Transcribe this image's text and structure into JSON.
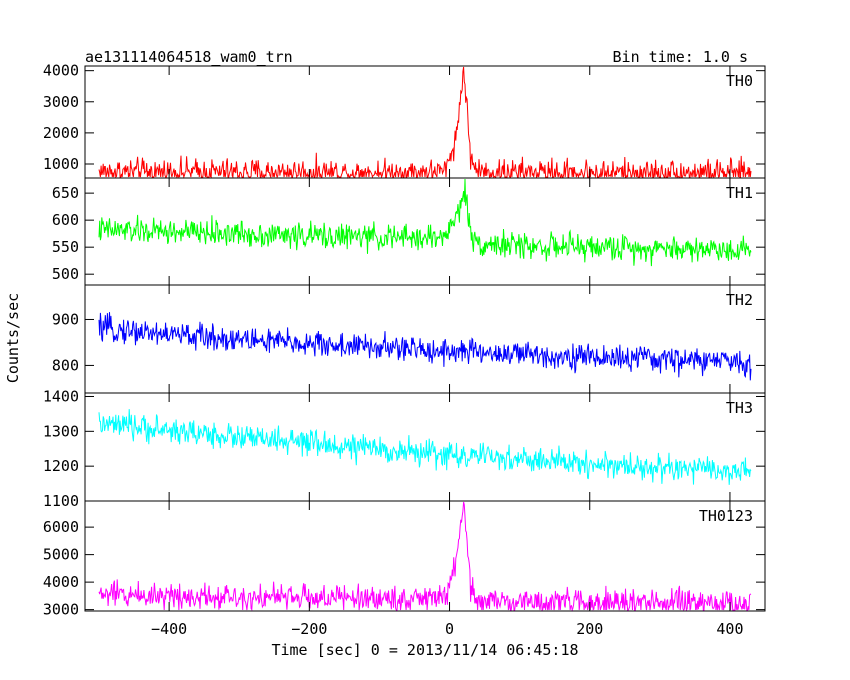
{
  "header": {
    "title": "ae131114064518_wam0_trn",
    "bin_time": "Bin time: 1.0 s"
  },
  "colors": {
    "TH0": "#ff0000",
    "TH1": "#00ff00",
    "TH2": "#0000ff",
    "TH3": "#00ffff",
    "TH0123": "#ff00ff"
  },
  "chart_data": {
    "type": "line",
    "title": "ae131114064518_wam0_trn",
    "subtitle": "Bin time: 1.0 s",
    "xlabel": "Time [sec] 0 = 2013/11/14 06:45:18",
    "ylabel": "Counts/sec",
    "xlim": [
      -520,
      450
    ],
    "x_ticks": [
      -400,
      -200,
      0,
      200,
      400
    ],
    "panels": [
      {
        "name": "TH0",
        "ylim": [
          550,
          4150
        ],
        "y_ticks": [
          1000,
          2000,
          3000,
          4000
        ],
        "points": [
          [
            -500,
            750
          ],
          [
            -450,
            745
          ],
          [
            -400,
            740
          ],
          [
            -350,
            740
          ],
          [
            -300,
            735
          ],
          [
            -250,
            735
          ],
          [
            -200,
            730
          ],
          [
            -150,
            730
          ],
          [
            -100,
            725
          ],
          [
            -50,
            725
          ],
          [
            -10,
            740
          ],
          [
            -5,
            820
          ],
          [
            0,
            1150
          ],
          [
            5,
            1600
          ],
          [
            10,
            1900
          ],
          [
            14,
            2800
          ],
          [
            18,
            3700
          ],
          [
            20,
            4000
          ],
          [
            23,
            3400
          ],
          [
            26,
            2300
          ],
          [
            30,
            1300
          ],
          [
            35,
            880
          ],
          [
            40,
            780
          ],
          [
            50,
            740
          ],
          [
            100,
            725
          ],
          [
            150,
            720
          ],
          [
            200,
            715
          ],
          [
            250,
            715
          ],
          [
            300,
            710
          ],
          [
            350,
            710
          ],
          [
            400,
            705
          ],
          [
            430,
            700
          ]
        ]
      },
      {
        "name": "TH1",
        "ylim": [
          480,
          678
        ],
        "y_ticks": [
          500,
          550,
          600,
          650
        ],
        "points": [
          [
            -500,
            582
          ],
          [
            -450,
            580
          ],
          [
            -400,
            578
          ],
          [
            -350,
            577
          ],
          [
            -300,
            575
          ],
          [
            -250,
            573
          ],
          [
            -200,
            571
          ],
          [
            -150,
            570
          ],
          [
            -100,
            568
          ],
          [
            -50,
            567
          ],
          [
            -10,
            568
          ],
          [
            0,
            585
          ],
          [
            10,
            605
          ],
          [
            18,
            640
          ],
          [
            22,
            660
          ],
          [
            26,
            610
          ],
          [
            30,
            575
          ],
          [
            40,
            558
          ],
          [
            50,
            556
          ],
          [
            100,
            553
          ],
          [
            150,
            551
          ],
          [
            200,
            550
          ],
          [
            250,
            549
          ],
          [
            300,
            548
          ],
          [
            350,
            547
          ],
          [
            400,
            546
          ],
          [
            430,
            545
          ]
        ]
      },
      {
        "name": "TH2",
        "ylim": [
          740,
          975
        ],
        "y_ticks": [
          800,
          900
        ],
        "points": [
          [
            -500,
            880
          ],
          [
            -450,
            875
          ],
          [
            -400,
            868
          ],
          [
            -350,
            862
          ],
          [
            -300,
            857
          ],
          [
            -250,
            852
          ],
          [
            -200,
            847
          ],
          [
            -150,
            843
          ],
          [
            -100,
            839
          ],
          [
            -50,
            835
          ],
          [
            0,
            832
          ],
          [
            50,
            828
          ],
          [
            100,
            824
          ],
          [
            150,
            821
          ],
          [
            200,
            818
          ],
          [
            250,
            816
          ],
          [
            300,
            813
          ],
          [
            350,
            811
          ],
          [
            400,
            809
          ],
          [
            430,
            808
          ]
        ]
      },
      {
        "name": "TH3",
        "ylim": [
          1100,
          1410
        ],
        "y_ticks": [
          1100,
          1200,
          1300,
          1400
        ],
        "points": [
          [
            -500,
            1320
          ],
          [
            -450,
            1312
          ],
          [
            -400,
            1303
          ],
          [
            -350,
            1293
          ],
          [
            -300,
            1283
          ],
          [
            -250,
            1274
          ],
          [
            -200,
            1265
          ],
          [
            -150,
            1256
          ],
          [
            -100,
            1248
          ],
          [
            -50,
            1240
          ],
          [
            0,
            1233
          ],
          [
            50,
            1226
          ],
          [
            100,
            1219
          ],
          [
            150,
            1213
          ],
          [
            200,
            1207
          ],
          [
            250,
            1201
          ],
          [
            300,
            1195
          ],
          [
            350,
            1190
          ],
          [
            400,
            1186
          ],
          [
            430,
            1183
          ]
        ]
      },
      {
        "name": "TH0123",
        "ylim": [
          2950,
          6950
        ],
        "y_ticks": [
          3000,
          4000,
          5000,
          6000
        ],
        "points": [
          [
            -500,
            3560
          ],
          [
            -450,
            3540
          ],
          [
            -400,
            3520
          ],
          [
            -350,
            3500
          ],
          [
            -300,
            3480
          ],
          [
            -250,
            3460
          ],
          [
            -200,
            3440
          ],
          [
            -150,
            3420
          ],
          [
            -100,
            3400
          ],
          [
            -50,
            3390
          ],
          [
            -10,
            3420
          ],
          [
            -5,
            3550
          ],
          [
            0,
            3950
          ],
          [
            5,
            4500
          ],
          [
            10,
            4650
          ],
          [
            14,
            5500
          ],
          [
            18,
            6300
          ],
          [
            20,
            6850
          ],
          [
            23,
            6100
          ],
          [
            26,
            5000
          ],
          [
            30,
            3900
          ],
          [
            35,
            3450
          ],
          [
            40,
            3330
          ],
          [
            50,
            3300
          ],
          [
            100,
            3280
          ],
          [
            150,
            3260
          ],
          [
            200,
            3250
          ],
          [
            250,
            3240
          ],
          [
            300,
            3230
          ],
          [
            350,
            3220
          ],
          [
            400,
            3210
          ],
          [
            430,
            3200
          ]
        ]
      }
    ]
  }
}
